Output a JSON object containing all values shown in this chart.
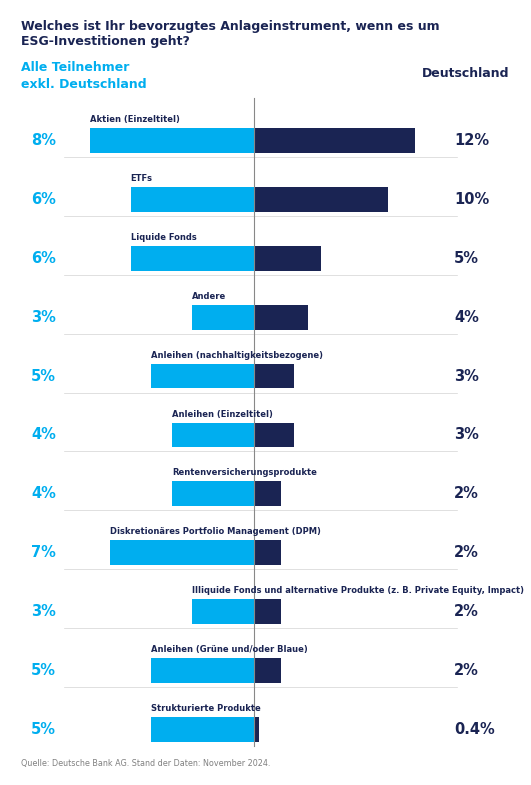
{
  "title_line1": "Welches ist Ihr bevorzugtes Anlageinstrument, wenn es um",
  "title_line2": "ESG-Investitionen geht?",
  "left_label_line1": "Alle Teilnehmer",
  "left_label_line2": "exkl. Deutschland",
  "right_label": "Deutschland",
  "categories": [
    "Aktien (Einzeltitel)",
    "ETFs",
    "Liquide Fonds",
    "Andere",
    "Anleihen (nachhaltigkeitsbezogene)",
    "Anleihen (Einzeltitel)",
    "Rentenversicherungsprodukte",
    "Diskretionäres Portfolio Management (DPM)",
    "Illiquide Fonds und alternative Produkte (z. B. Private Equity, Impact)",
    "Anleihen (Grüne und/oder Blaue)",
    "Strukturierte Produkte"
  ],
  "left_values": [
    8,
    6,
    6,
    3,
    5,
    4,
    4,
    7,
    3,
    5,
    5
  ],
  "right_values": [
    12,
    10,
    5,
    4,
    3,
    3,
    2,
    2,
    2,
    2,
    0.4
  ],
  "left_pct_labels": [
    "8%",
    "6%",
    "6%",
    "3%",
    "5%",
    "4%",
    "4%",
    "7%",
    "3%",
    "5%",
    "5%"
  ],
  "right_pct_labels": [
    "12%",
    "10%",
    "5%",
    "4%",
    "3%",
    "3%",
    "2%",
    "2%",
    "2%",
    "2%",
    "0.4%"
  ],
  "cyan_color": "#00AEEF",
  "navy_color": "#1A2453",
  "left_label_color": "#00AEEF",
  "right_label_color": "#1A2453",
  "title_color": "#1A2453",
  "bg_color": "#FFFFFF",
  "source_text": "Quelle: Deutsche Bank AG. Stand der Daten: November 2024.",
  "scale": 1.6,
  "divider_pct": 0.505
}
